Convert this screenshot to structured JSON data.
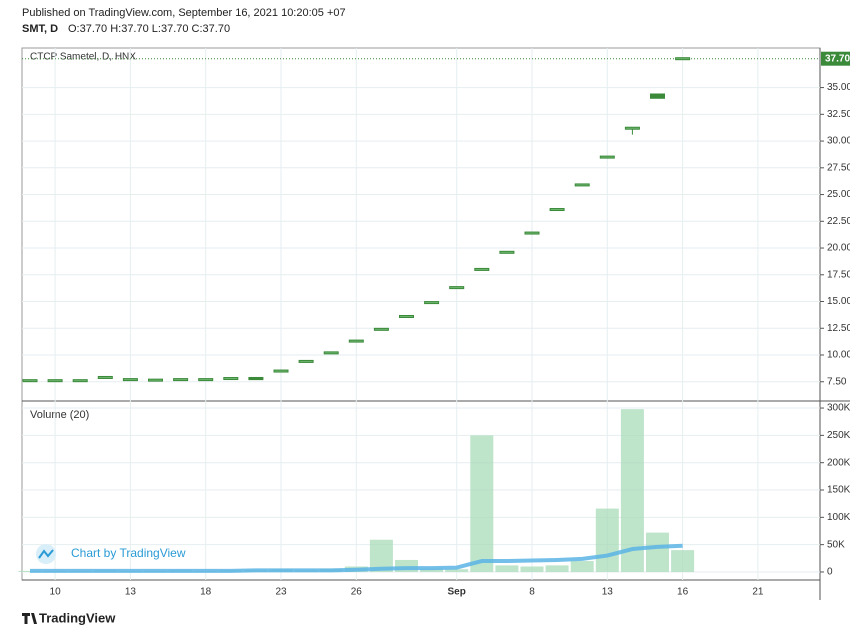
{
  "header": {
    "published": "Published on TradingView.com, September 16, 2021 10:20:05 +07",
    "symbol": "SMT, D",
    "ohlc": "O:37.70 H:37.70 L:37.70 C:37.70"
  },
  "chart_data": {
    "type": "candlestick",
    "title": "CTCP Sametel, D, HNX",
    "categories": [
      null,
      "10",
      null,
      null,
      "13",
      null,
      null,
      "18",
      null,
      null,
      "23",
      null,
      null,
      "26",
      null,
      null,
      null,
      "Sep",
      null,
      null,
      "8",
      null,
      null,
      "13",
      null,
      null,
      "16",
      null,
      null,
      "21"
    ],
    "open": [
      7.6,
      7.6,
      7.6,
      7.9,
      7.7,
      7.65,
      7.6,
      7.7,
      7.8,
      7.7,
      8.5,
      9.4,
      10.2,
      11.3,
      12.4,
      13.6,
      14.9,
      16.3,
      18.0,
      19.6,
      21.4,
      23.6,
      25.9,
      28.5,
      31.2,
      34.0,
      37.7,
      null,
      null,
      null
    ],
    "high": [
      7.6,
      7.6,
      7.6,
      7.9,
      7.7,
      7.65,
      7.75,
      7.7,
      7.8,
      7.9,
      8.5,
      9.4,
      10.2,
      11.3,
      12.4,
      13.6,
      14.9,
      16.3,
      18.0,
      19.6,
      21.4,
      23.6,
      25.9,
      28.5,
      31.2,
      34.4,
      37.7,
      null,
      null,
      null
    ],
    "low": [
      7.6,
      7.6,
      7.6,
      7.9,
      7.7,
      7.65,
      7.6,
      7.7,
      7.8,
      7.7,
      8.5,
      9.4,
      10.2,
      11.3,
      12.4,
      13.6,
      14.9,
      16.3,
      18.0,
      19.6,
      21.4,
      23.6,
      25.9,
      28.5,
      30.6,
      34.0,
      37.7,
      null,
      null,
      null
    ],
    "close": [
      7.6,
      7.6,
      7.6,
      7.9,
      7.7,
      7.65,
      7.7,
      7.7,
      7.8,
      7.9,
      8.5,
      9.4,
      10.2,
      11.3,
      12.4,
      13.6,
      14.9,
      16.3,
      18.0,
      19.6,
      21.4,
      23.6,
      25.9,
      28.5,
      31.2,
      34.4,
      37.7,
      null,
      null,
      null
    ],
    "color": "#3a8a3a",
    "ylim": [
      5.7,
      38.7
    ],
    "yticks": [
      {
        "value": 7.5,
        "label": "7.50"
      },
      {
        "value": 10,
        "label": "10.00"
      },
      {
        "value": 12.5,
        "label": "12.50"
      },
      {
        "value": 15,
        "label": "15.00"
      },
      {
        "value": 17.5,
        "label": "17.50"
      },
      {
        "value": 20,
        "label": "20.00"
      },
      {
        "value": 22.5,
        "label": "22.50"
      },
      {
        "value": 25,
        "label": "25.00"
      },
      {
        "value": 27.5,
        "label": "27.50"
      },
      {
        "value": 30,
        "label": "30.00"
      },
      {
        "value": 32.5,
        "label": "32.50"
      },
      {
        "value": 35,
        "label": "35.00"
      }
    ],
    "last_price": {
      "value": 37.7,
      "label": "37.70"
    },
    "grid": true,
    "volume": {
      "title": "Volume (20)",
      "values": [
        2000,
        2000,
        2000,
        3000,
        2000,
        2000,
        3000,
        2000,
        3000,
        4000,
        5000,
        4000,
        6000,
        10000,
        59000,
        22000,
        6000,
        5000,
        250000,
        12000,
        10000,
        12000,
        20000,
        116000,
        298000,
        72000,
        40000,
        null,
        null,
        null
      ],
      "ma": [
        2000,
        2000,
        2000,
        2000,
        2000,
        2000,
        2000,
        2000,
        2000,
        3000,
        3000,
        3000,
        3000,
        4000,
        6000,
        7000,
        7000,
        8000,
        20000,
        20000,
        21000,
        22000,
        24000,
        30000,
        42000,
        46000,
        48000,
        null,
        null,
        null
      ],
      "color": "#a8dbb8",
      "ma_color": "#5ab4e5",
      "ylim": [
        -14700,
        312900
      ],
      "yticks": [
        0,
        {
          "value": 50000,
          "label": "50K"
        },
        {
          "value": 100000,
          "label": "100K"
        },
        {
          "value": 150000,
          "label": "150K"
        },
        {
          "value": 200000,
          "label": "200K"
        },
        {
          "value": 250000,
          "label": "250K"
        },
        {
          "value": 300000,
          "label": "300K"
        }
      ]
    }
  },
  "watermark": "Chart by TradingView",
  "footer": "TradingView"
}
